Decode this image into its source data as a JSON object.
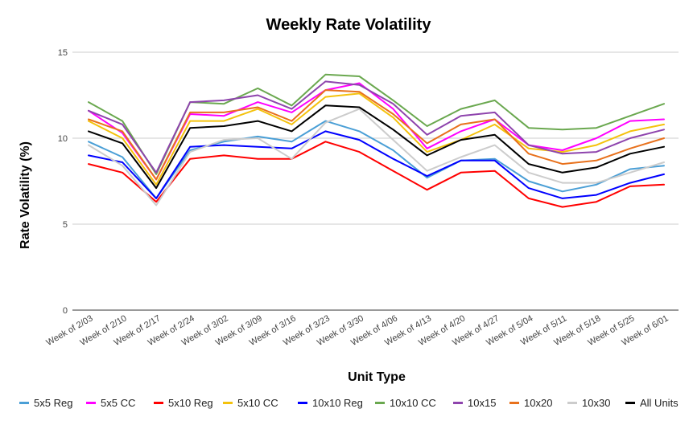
{
  "chart_data": {
    "type": "line",
    "title": "Weekly Rate Volatility",
    "xlabel": "Unit Type",
    "ylabel": "Rate Volatility (%)",
    "ylim": [
      0,
      15
    ],
    "yticks": [
      0,
      5,
      10,
      15
    ],
    "grid": "horizontal",
    "legend_position": "bottom",
    "categories": [
      "Week of 2/03",
      "Week of 2/10",
      "Week of 2/17",
      "Week of 2/24",
      "Week of 3/02",
      "Week of 3/09",
      "Week of 3/16",
      "Week of 3/23",
      "Week of 3/30",
      "Week of 4/06",
      "Week of 4/13",
      "Week of 4/20",
      "Week of 4/27",
      "Week of 5/04",
      "Week of 5/11",
      "Week of 5/18",
      "Week of 5/25",
      "Week of 6/01"
    ],
    "series": [
      {
        "name": "5x5 Reg",
        "color": "#4a9fd6",
        "values": [
          9.8,
          8.9,
          6.5,
          9.3,
          9.8,
          10.1,
          9.8,
          11.0,
          10.4,
          9.3,
          7.7,
          8.7,
          8.8,
          7.5,
          6.9,
          7.3,
          8.2,
          8.4
        ]
      },
      {
        "name": "5x5 CC",
        "color": "#ff00ff",
        "values": [
          11.6,
          10.3,
          7.6,
          11.4,
          11.3,
          12.1,
          11.5,
          12.8,
          13.2,
          11.7,
          9.4,
          10.4,
          11.1,
          9.6,
          9.3,
          10.0,
          11.0,
          11.1
        ]
      },
      {
        "name": "5x10 Reg",
        "color": "#ff0000",
        "values": [
          8.5,
          8.0,
          6.3,
          8.8,
          9.0,
          8.8,
          8.8,
          9.8,
          9.2,
          8.1,
          7.0,
          8.0,
          8.1,
          6.5,
          6.0,
          6.3,
          7.2,
          7.3
        ]
      },
      {
        "name": "5x10 CC",
        "color": "#f4c20d",
        "values": [
          11.0,
          10.0,
          7.3,
          11.0,
          11.0,
          11.7,
          10.8,
          12.4,
          12.6,
          11.2,
          9.2,
          9.9,
          10.8,
          9.4,
          9.2,
          9.6,
          10.4,
          10.8
        ]
      },
      {
        "name": "10x10 Reg",
        "color": "#0000ff",
        "values": [
          9.0,
          8.6,
          6.5,
          9.5,
          9.6,
          9.5,
          9.4,
          10.4,
          9.9,
          8.8,
          7.8,
          8.7,
          8.7,
          7.1,
          6.5,
          6.7,
          7.4,
          7.9
        ]
      },
      {
        "name": "10x10 CC",
        "color": "#6aa84f",
        "values": [
          12.1,
          11.0,
          7.9,
          12.1,
          12.0,
          12.9,
          11.9,
          13.7,
          13.6,
          12.2,
          10.7,
          11.7,
          12.2,
          10.6,
          10.5,
          10.6,
          11.3,
          12.0
        ]
      },
      {
        "name": "10x15",
        "color": "#8e44ad",
        "values": [
          11.6,
          10.8,
          8.0,
          12.1,
          12.2,
          12.5,
          11.7,
          13.3,
          13.1,
          12.0,
          10.2,
          11.3,
          11.5,
          9.6,
          9.1,
          9.2,
          10.0,
          10.5
        ]
      },
      {
        "name": "10x20",
        "color": "#e8711c",
        "values": [
          11.1,
          10.4,
          7.6,
          11.5,
          11.5,
          11.8,
          11.0,
          12.8,
          12.7,
          11.4,
          9.7,
          10.8,
          11.1,
          9.1,
          8.5,
          8.7,
          9.4,
          10.0
        ]
      },
      {
        "name": "10x30",
        "color": "#cccccc",
        "values": [
          9.6,
          8.4,
          6.1,
          9.2,
          9.9,
          10.0,
          8.8,
          10.9,
          11.7,
          9.9,
          8.1,
          8.9,
          9.6,
          8.0,
          7.4,
          7.4,
          8.0,
          8.6
        ]
      },
      {
        "name": "All Units",
        "color": "#000000",
        "values": [
          10.4,
          9.7,
          7.1,
          10.6,
          10.7,
          11.0,
          10.4,
          11.9,
          11.8,
          10.5,
          9.0,
          9.9,
          10.2,
          8.5,
          8.0,
          8.3,
          9.1,
          9.5
        ]
      }
    ]
  }
}
